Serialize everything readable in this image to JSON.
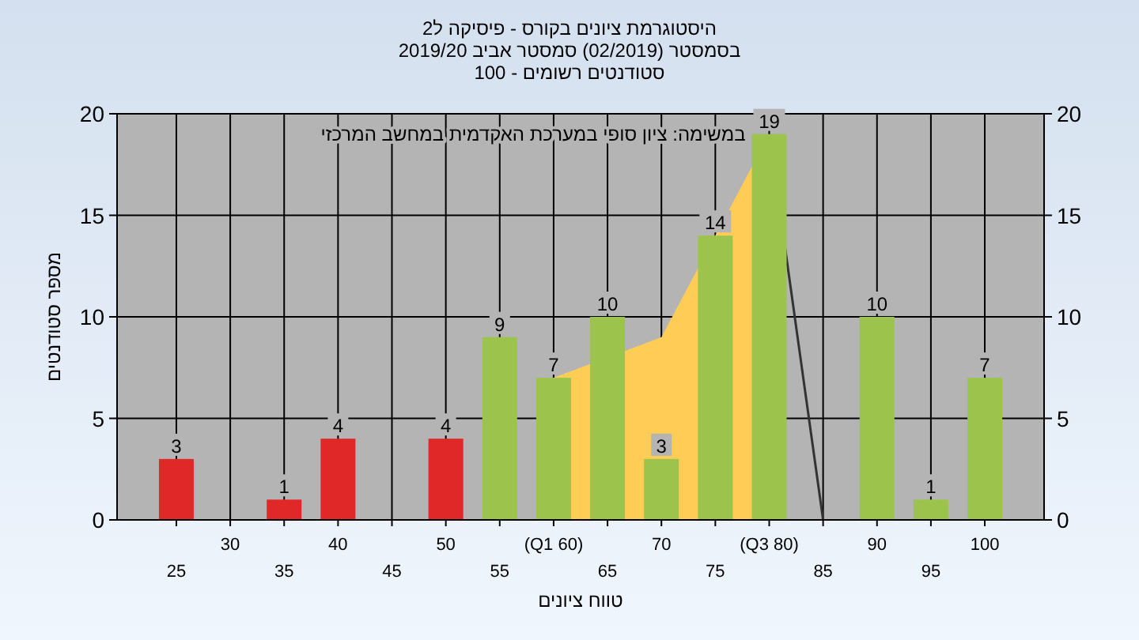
{
  "chart_data": {
    "type": "bar",
    "title": "היסטוגרמת ציונים בקורס - פיסיקה ל2",
    "subtitle": "בסמסטר (02/2019) סמסטר אביב 2019/20\nסטודנטים רשומים - 100",
    "xlabel": "טווח ציונים",
    "ylabel": "מספר סטודנטים",
    "annotations": [
      "במשימה: ציון סופי במערכת האקדמית במחשב המרכזי"
    ],
    "categories": [
      "25",
      "30",
      "35",
      "40",
      "45",
      "50",
      "55",
      "(Q1 60)",
      "65",
      "70",
      "75",
      "(Q3 80)",
      "85",
      "90",
      "95",
      "100"
    ],
    "series": [
      {
        "type": "area",
        "color": "#ffcc55",
        "values": [
          null,
          null,
          null,
          null,
          null,
          null,
          null,
          7,
          null,
          9,
          null,
          19,
          null,
          null,
          null,
          null
        ]
      },
      {
        "type": "line",
        "color": "#333333",
        "values": [
          null,
          null,
          null,
          null,
          null,
          null,
          null,
          null,
          null,
          null,
          null,
          19,
          0,
          null,
          null,
          null
        ]
      },
      {
        "values": [
          3,
          0,
          1,
          4,
          0,
          4,
          9,
          7,
          10,
          3,
          14,
          19,
          0,
          10,
          1,
          7
        ],
        "value_labels": [
          "3",
          null,
          "1",
          "4",
          null,
          "4",
          "9",
          "7",
          "10",
          "3",
          "14",
          "19",
          null,
          "10",
          "1",
          "7"
        ],
        "colors": [
          "#e02828",
          "#e02828",
          "#e02828",
          "#e02828",
          "#e02828",
          "#e02828",
          "#9cc44c",
          "#9cc44c",
          "#9cc44c",
          "#9cc44c",
          "#9cc44c",
          "#9cc44c",
          "#9cc44c",
          "#9cc44c",
          "#9cc44c",
          "#9cc44c"
        ]
      }
    ],
    "ylim": [
      0,
      20
    ],
    "yticks": [
      0,
      5,
      10,
      15,
      20
    ],
    "y2lim": [
      0,
      20
    ],
    "y2ticks": [
      0,
      5,
      10,
      15,
      20
    ],
    "grid": true
  }
}
